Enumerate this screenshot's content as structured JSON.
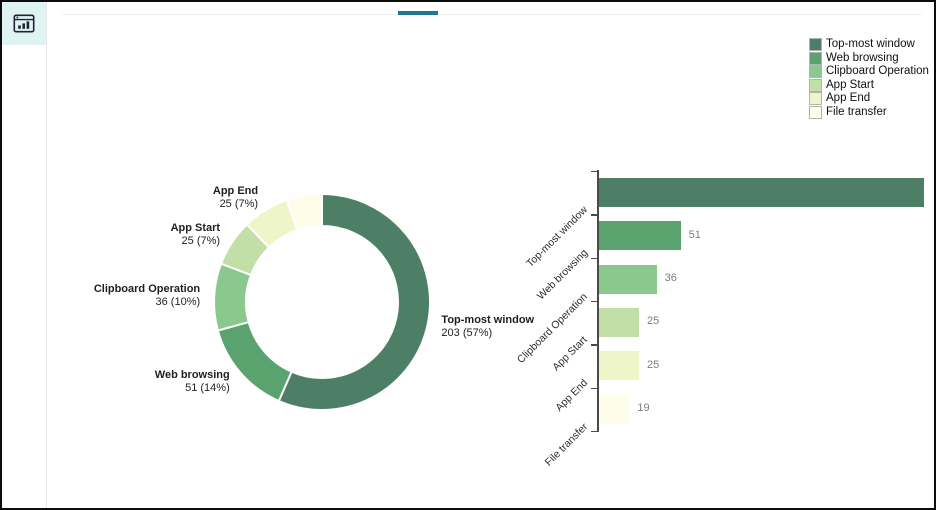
{
  "window": {
    "background": "#ffffff",
    "accent_teal": "#1d7a8c",
    "sidebar_icon_box_color": "#dff2f4"
  },
  "legend": {
    "position": "top-right",
    "items": [
      {
        "label": "Top-most window",
        "color": "#4d7f66"
      },
      {
        "label": "Web browsing",
        "color": "#5aa26e"
      },
      {
        "label": "Clipboard Operation",
        "color": "#8ac88e"
      },
      {
        "label": "App Start",
        "color": "#c1dfa6"
      },
      {
        "label": "App End",
        "color": "#eef5c8"
      },
      {
        "label": "File transfer",
        "color": "#fdfde9"
      }
    ]
  },
  "chart_data": [
    {
      "type": "pie",
      "subtype": "donut",
      "title": "",
      "categories": [
        "Top-most window",
        "Web browsing",
        "Clipboard Operation",
        "App Start",
        "App End",
        "File transfer"
      ],
      "values": [
        203,
        51,
        36,
        25,
        25,
        19
      ],
      "total": 359,
      "colors": [
        "#4d7f66",
        "#5aa26e",
        "#8ac88e",
        "#c1dfa6",
        "#eef5c8",
        "#fdfde9"
      ],
      "start_angle_deg": 0,
      "direction": "clockwise",
      "segment_labels": [
        {
          "name": "Top-most window",
          "value_text": "203 (57%)",
          "shown": true
        },
        {
          "name": "Web browsing",
          "value_text": "51 (14%)",
          "shown": true
        },
        {
          "name": "Clipboard Operation",
          "value_text": "36 (10%)",
          "shown": true
        },
        {
          "name": "App Start",
          "value_text": "25 (7%)",
          "shown": true
        },
        {
          "name": "App End",
          "value_text": "25 (7%)",
          "shown": true
        },
        {
          "name": "File transfer",
          "value_text": "19 (5%)",
          "shown": false
        }
      ]
    },
    {
      "type": "bar",
      "orientation": "horizontal",
      "title": "",
      "xlabel": "",
      "ylabel": "",
      "xlim": [
        0,
        203
      ],
      "grid": false,
      "categories": [
        "Top-most window",
        "Web browsing",
        "Clipboard Operation",
        "App Start",
        "App End",
        "File transfer"
      ],
      "values": [
        203,
        51,
        36,
        25,
        25,
        19
      ],
      "value_labels": [
        "",
        "51",
        "36",
        "25",
        "25",
        "19"
      ],
      "colors": [
        "#4d7f66",
        "#5aa26e",
        "#8ac88e",
        "#c1dfa6",
        "#eef5c8",
        "#fdfde9"
      ]
    }
  ]
}
